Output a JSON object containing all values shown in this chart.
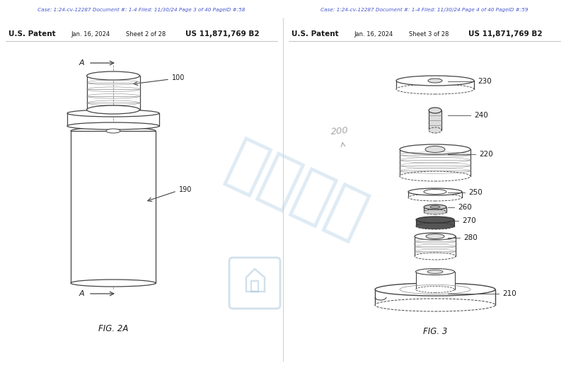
{
  "bg_color": "#ffffff",
  "header_color": "#4455cc",
  "left_header": "Case: 1:24-cv-12287 Document #: 1-4 Filed: 11/30/24 Page 3 of 40 PageID #:58",
  "right_header": "Case: 1:24-cv-12287 Document #: 1-4 Filed: 11/30/24 Page 4 of 40 PageID #:59",
  "patent_left_line1": "U.S. Patent",
  "patent_left_line2": "Jan. 16, 2024",
  "patent_left_line3": "Sheet 2 of 28",
  "patent_left_line4": "US 11,871,769 B2",
  "patent_right_line1": "U.S. Patent",
  "patent_right_line2": "Jan. 16, 2024",
  "patent_right_line3": "Sheet 3 of 28",
  "patent_right_line4": "US 11,871,769 B2",
  "fig_left_label": "FIG. 2A",
  "fig_right_label": "FIG. 3",
  "watermark_text_cn": "卖家支持",
  "text_color_dark": "#1a1a1a",
  "text_color_gray": "#555555",
  "line_color": "#444444"
}
